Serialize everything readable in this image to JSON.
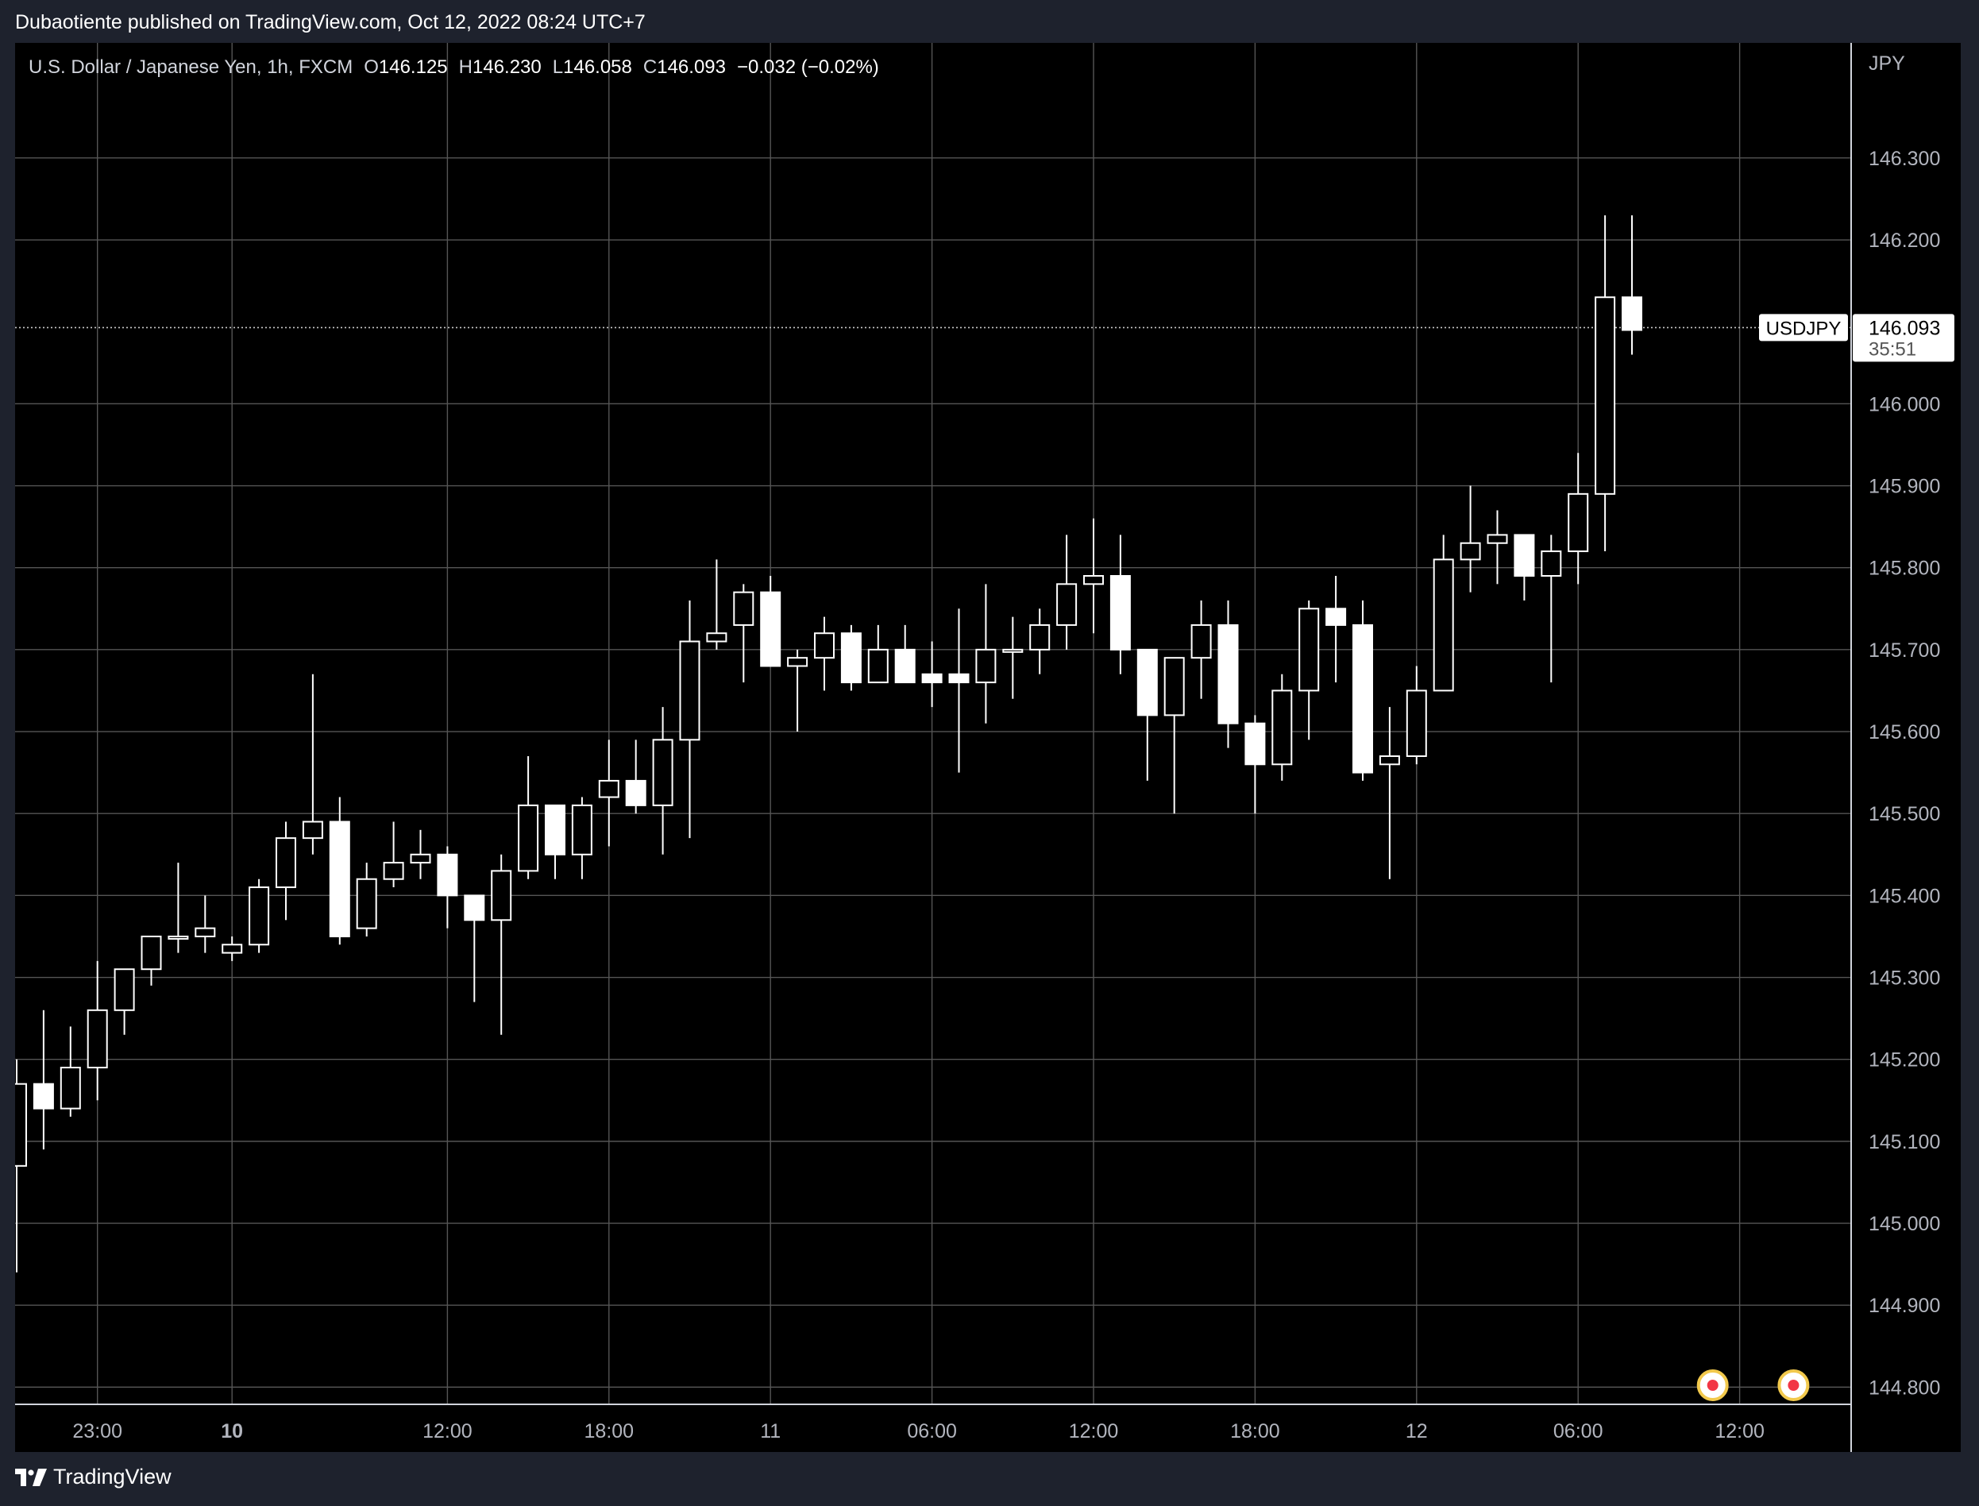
{
  "header": {
    "published": "Dubaotiente published on TradingView.com, Oct 12, 2022 08:24 UTC+7"
  },
  "legend": {
    "symbol": "U.S. Dollar / Japanese Yen, 1h, FXCM",
    "o_label": "O",
    "o_value": "146.125",
    "h_label": "H",
    "h_value": "146.230",
    "l_label": "L",
    "l_value": "146.058",
    "c_label": "C",
    "c_value": "146.093",
    "change": "−0.032 (−0.02%)"
  },
  "price_axis": {
    "currency": "JPY",
    "last_label_tag": "USDJPY",
    "last_price": "146.093",
    "countdown": "35:51"
  },
  "footer": {
    "brand": "TradingView",
    "logo_icon": "tradingview-logo-icon"
  },
  "colors": {
    "background": "#000000",
    "frame": "#1e222d",
    "grid": "#555555",
    "candle": "#ffffff",
    "axis_text": "#b2b5be",
    "event_marker_ring": "#f2c94c",
    "event_marker_dot": "#f23645"
  },
  "chart_data": {
    "type": "candlestick",
    "timeframe": "1h",
    "y_range": [
      144.78,
      146.39
    ],
    "y_ticks": [
      "146.300",
      "146.200",
      "146.000",
      "145.900",
      "145.800",
      "145.700",
      "145.600",
      "145.500",
      "145.400",
      "145.300",
      "145.200",
      "145.100",
      "145.000",
      "144.900",
      "144.800"
    ],
    "x_ticks": [
      {
        "label": "23:00",
        "index": 3,
        "bold": false
      },
      {
        "label": "10",
        "index": 8,
        "bold": true
      },
      {
        "label": "12:00",
        "index": 16,
        "bold": false
      },
      {
        "label": "18:00",
        "index": 22,
        "bold": false
      },
      {
        "label": "11",
        "index": 28,
        "bold": false
      },
      {
        "label": "06:00",
        "index": 34,
        "bold": false
      },
      {
        "label": "12:00",
        "index": 40,
        "bold": false
      },
      {
        "label": "18:00",
        "index": 46,
        "bold": false
      },
      {
        "label": "12",
        "index": 52,
        "bold": false
      },
      {
        "label": "06:00",
        "index": 58,
        "bold": false
      },
      {
        "label": "12:00",
        "index": 64,
        "bold": false
      }
    ],
    "candles": [
      {
        "o": 145.07,
        "h": 145.2,
        "l": 144.94,
        "c": 145.17
      },
      {
        "o": 145.17,
        "h": 145.26,
        "l": 145.09,
        "c": 145.14
      },
      {
        "o": 145.14,
        "h": 145.24,
        "l": 145.13,
        "c": 145.19
      },
      {
        "o": 145.19,
        "h": 145.32,
        "l": 145.15,
        "c": 145.26
      },
      {
        "o": 145.26,
        "h": 145.31,
        "l": 145.23,
        "c": 145.31
      },
      {
        "o": 145.31,
        "h": 145.35,
        "l": 145.29,
        "c": 145.35
      },
      {
        "o": 145.35,
        "h": 145.44,
        "l": 145.33,
        "c": 145.35
      },
      {
        "o": 145.35,
        "h": 145.4,
        "l": 145.33,
        "c": 145.36
      },
      {
        "o": 145.33,
        "h": 145.35,
        "l": 145.32,
        "c": 145.34
      },
      {
        "o": 145.34,
        "h": 145.42,
        "l": 145.33,
        "c": 145.41
      },
      {
        "o": 145.41,
        "h": 145.49,
        "l": 145.37,
        "c": 145.47
      },
      {
        "o": 145.47,
        "h": 145.67,
        "l": 145.45,
        "c": 145.49
      },
      {
        "o": 145.49,
        "h": 145.52,
        "l": 145.34,
        "c": 145.35
      },
      {
        "o": 145.36,
        "h": 145.44,
        "l": 145.35,
        "c": 145.42
      },
      {
        "o": 145.42,
        "h": 145.49,
        "l": 145.41,
        "c": 145.44
      },
      {
        "o": 145.44,
        "h": 145.48,
        "l": 145.42,
        "c": 145.45
      },
      {
        "o": 145.45,
        "h": 145.46,
        "l": 145.36,
        "c": 145.4
      },
      {
        "o": 145.4,
        "h": 145.4,
        "l": 145.27,
        "c": 145.37
      },
      {
        "o": 145.37,
        "h": 145.45,
        "l": 145.23,
        "c": 145.43
      },
      {
        "o": 145.43,
        "h": 145.57,
        "l": 145.42,
        "c": 145.51
      },
      {
        "o": 145.51,
        "h": 145.51,
        "l": 145.42,
        "c": 145.45
      },
      {
        "o": 145.45,
        "h": 145.52,
        "l": 145.42,
        "c": 145.51
      },
      {
        "o": 145.52,
        "h": 145.59,
        "l": 145.46,
        "c": 145.54
      },
      {
        "o": 145.54,
        "h": 145.59,
        "l": 145.5,
        "c": 145.51
      },
      {
        "o": 145.51,
        "h": 145.63,
        "l": 145.45,
        "c": 145.59
      },
      {
        "o": 145.59,
        "h": 145.76,
        "l": 145.47,
        "c": 145.71
      },
      {
        "o": 145.71,
        "h": 145.81,
        "l": 145.7,
        "c": 145.72
      },
      {
        "o": 145.73,
        "h": 145.78,
        "l": 145.66,
        "c": 145.77
      },
      {
        "o": 145.77,
        "h": 145.79,
        "l": 145.68,
        "c": 145.68
      },
      {
        "o": 145.68,
        "h": 145.7,
        "l": 145.6,
        "c": 145.69
      },
      {
        "o": 145.69,
        "h": 145.74,
        "l": 145.65,
        "c": 145.72
      },
      {
        "o": 145.72,
        "h": 145.73,
        "l": 145.65,
        "c": 145.66
      },
      {
        "o": 145.66,
        "h": 145.73,
        "l": 145.66,
        "c": 145.7
      },
      {
        "o": 145.7,
        "h": 145.73,
        "l": 145.66,
        "c": 145.66
      },
      {
        "o": 145.67,
        "h": 145.71,
        "l": 145.63,
        "c": 145.66
      },
      {
        "o": 145.67,
        "h": 145.75,
        "l": 145.55,
        "c": 145.66
      },
      {
        "o": 145.66,
        "h": 145.78,
        "l": 145.61,
        "c": 145.7
      },
      {
        "o": 145.7,
        "h": 145.74,
        "l": 145.64,
        "c": 145.7
      },
      {
        "o": 145.7,
        "h": 145.75,
        "l": 145.67,
        "c": 145.73
      },
      {
        "o": 145.73,
        "h": 145.84,
        "l": 145.7,
        "c": 145.78
      },
      {
        "o": 145.78,
        "h": 145.86,
        "l": 145.72,
        "c": 145.79
      },
      {
        "o": 145.79,
        "h": 145.84,
        "l": 145.67,
        "c": 145.7
      },
      {
        "o": 145.7,
        "h": 145.7,
        "l": 145.54,
        "c": 145.62
      },
      {
        "o": 145.62,
        "h": 145.69,
        "l": 145.5,
        "c": 145.69
      },
      {
        "o": 145.69,
        "h": 145.76,
        "l": 145.64,
        "c": 145.73
      },
      {
        "o": 145.73,
        "h": 145.76,
        "l": 145.58,
        "c": 145.61
      },
      {
        "o": 145.61,
        "h": 145.62,
        "l": 145.5,
        "c": 145.56
      },
      {
        "o": 145.56,
        "h": 145.67,
        "l": 145.54,
        "c": 145.65
      },
      {
        "o": 145.65,
        "h": 145.76,
        "l": 145.59,
        "c": 145.75
      },
      {
        "o": 145.75,
        "h": 145.79,
        "l": 145.66,
        "c": 145.73
      },
      {
        "o": 145.73,
        "h": 145.76,
        "l": 145.54,
        "c": 145.55
      },
      {
        "o": 145.56,
        "h": 145.63,
        "l": 145.42,
        "c": 145.57
      },
      {
        "o": 145.57,
        "h": 145.68,
        "l": 145.56,
        "c": 145.65
      },
      {
        "o": 145.65,
        "h": 145.84,
        "l": 145.65,
        "c": 145.81
      },
      {
        "o": 145.81,
        "h": 145.9,
        "l": 145.77,
        "c": 145.83
      },
      {
        "o": 145.83,
        "h": 145.87,
        "l": 145.78,
        "c": 145.84
      },
      {
        "o": 145.84,
        "h": 145.84,
        "l": 145.76,
        "c": 145.79
      },
      {
        "o": 145.79,
        "h": 145.84,
        "l": 145.66,
        "c": 145.82
      },
      {
        "o": 145.82,
        "h": 145.94,
        "l": 145.78,
        "c": 145.89
      },
      {
        "o": 145.89,
        "h": 146.23,
        "l": 145.82,
        "c": 146.13
      },
      {
        "o": 146.13,
        "h": 146.23,
        "l": 146.06,
        "c": 146.09
      }
    ],
    "last_price": 146.093,
    "event_marker_indices": [
      63,
      66
    ]
  }
}
